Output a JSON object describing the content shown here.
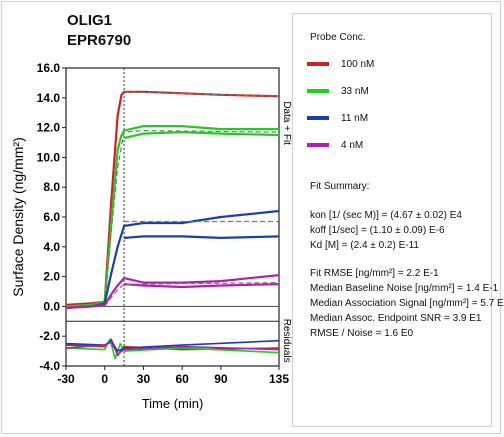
{
  "chart_data": {
    "type": "line",
    "title": "OLIG1",
    "subtitle": "EPR6790",
    "xlabel": "Time (min)",
    "ylabel": "Surface Density (ng/mm²)",
    "right_label_top": "Data + Fit",
    "right_label_bottom": "Residuals",
    "xlim": [
      -30,
      135
    ],
    "ylim": [
      -4.0,
      16.0
    ],
    "xticks": [
      "-30",
      "0",
      "30",
      "60",
      "90",
      "135"
    ],
    "yticks": [
      "-4.0",
      "-2.0",
      "0.0",
      "2.0",
      "4.0",
      "6.0",
      "8.0",
      "10.0",
      "12.0",
      "14.0",
      "16.0"
    ],
    "injection_end_x": 15,
    "residual_divider_y": -1.0,
    "series": [
      {
        "name": "100 nM",
        "color": "#cc2222",
        "data": [
          [
            -30,
            0.1
          ],
          [
            -10,
            0.2
          ],
          [
            0,
            0.3
          ],
          [
            5,
            7.0
          ],
          [
            10,
            12.8
          ],
          [
            13,
            14.2
          ],
          [
            15,
            14.4
          ],
          [
            30,
            14.4
          ],
          [
            60,
            14.3
          ],
          [
            90,
            14.2
          ],
          [
            135,
            14.1
          ]
        ],
        "fit": [
          [
            15,
            14.4
          ],
          [
            135,
            14.1
          ]
        ],
        "residual": [
          [
            -30,
            -2.6
          ],
          [
            0,
            -2.7
          ],
          [
            5,
            -2.2
          ],
          [
            10,
            -3.3
          ],
          [
            15,
            -2.7
          ],
          [
            60,
            -2.9
          ],
          [
            135,
            -2.8
          ]
        ]
      },
      {
        "name": "33 nM",
        "color": "#22cc22",
        "data": [
          [
            -30,
            0.0
          ],
          [
            -10,
            0.1
          ],
          [
            0,
            0.3
          ],
          [
            5,
            5.5
          ],
          [
            10,
            10.5
          ],
          [
            13,
            11.5
          ],
          [
            15,
            11.8
          ],
          [
            30,
            12.1
          ],
          [
            60,
            12.1
          ],
          [
            90,
            11.9
          ],
          [
            135,
            11.9
          ]
        ],
        "data2": [
          [
            15,
            11.3
          ],
          [
            30,
            11.6
          ],
          [
            60,
            11.7
          ],
          [
            90,
            11.6
          ],
          [
            135,
            11.5
          ]
        ],
        "fit": [
          [
            0,
            0.2
          ],
          [
            5,
            5.0
          ],
          [
            10,
            9.3
          ],
          [
            15,
            11.7
          ],
          [
            30,
            11.8
          ],
          [
            135,
            11.7
          ]
        ],
        "residual": [
          [
            -30,
            -2.8
          ],
          [
            0,
            -2.9
          ],
          [
            4,
            -2.2
          ],
          [
            8,
            -3.5
          ],
          [
            12,
            -2.5
          ],
          [
            15,
            -3.0
          ],
          [
            60,
            -2.8
          ],
          [
            135,
            -3.1
          ]
        ]
      },
      {
        "name": "11 nM",
        "color": "#1a3fa6",
        "data": [
          [
            -30,
            -0.1
          ],
          [
            -10,
            0.0
          ],
          [
            0,
            0.2
          ],
          [
            5,
            2.2
          ],
          [
            10,
            4.0
          ],
          [
            15,
            5.4
          ],
          [
            30,
            5.6
          ],
          [
            60,
            5.6
          ],
          [
            90,
            6.0
          ],
          [
            135,
            6.4
          ]
        ],
        "data2": [
          [
            15,
            4.6
          ],
          [
            30,
            4.7
          ],
          [
            60,
            4.7
          ],
          [
            90,
            4.6
          ],
          [
            135,
            4.7
          ]
        ],
        "fit": [
          [
            15,
            5.7
          ],
          [
            135,
            5.7
          ]
        ],
        "residual": [
          [
            -30,
            -2.5
          ],
          [
            0,
            -2.6
          ],
          [
            5,
            -2.3
          ],
          [
            10,
            -3.0
          ],
          [
            15,
            -2.8
          ],
          [
            60,
            -2.6
          ],
          [
            135,
            -2.3
          ]
        ]
      },
      {
        "name": "4 nM",
        "color": "#b020b0",
        "data": [
          [
            -30,
            -0.1
          ],
          [
            -10,
            0.0
          ],
          [
            0,
            0.1
          ],
          [
            5,
            0.8
          ],
          [
            10,
            1.4
          ],
          [
            15,
            1.9
          ],
          [
            30,
            1.6
          ],
          [
            60,
            1.6
          ],
          [
            90,
            1.7
          ],
          [
            135,
            2.1
          ]
        ],
        "data2": [
          [
            15,
            1.5
          ],
          [
            30,
            1.4
          ],
          [
            60,
            1.3
          ],
          [
            90,
            1.4
          ],
          [
            135,
            1.5
          ]
        ],
        "fit": [
          [
            0,
            0.0
          ],
          [
            5,
            0.6
          ],
          [
            10,
            1.1
          ],
          [
            15,
            1.5
          ],
          [
            30,
            1.5
          ],
          [
            135,
            1.6
          ]
        ],
        "residual": [
          [
            -30,
            -2.8
          ],
          [
            0,
            -2.6
          ],
          [
            5,
            -2.4
          ],
          [
            10,
            -3.2
          ],
          [
            15,
            -2.9
          ],
          [
            60,
            -2.7
          ],
          [
            135,
            -2.9
          ]
        ]
      }
    ]
  },
  "panel": {
    "legend_title": "Probe Conc.",
    "legend_items": [
      {
        "label": "100 nM",
        "color": "#cc2222"
      },
      {
        "label": "33 nM",
        "color": "#22cc22"
      },
      {
        "label": "11 nM",
        "color": "#1a3fa6"
      },
      {
        "label": "4 nM",
        "color": "#b020b0"
      }
    ],
    "fit_summary_title": "Fit Summary:",
    "fit_lines": [
      "kon  [1/ (sec M)]  =  (4.67 ± 0.02) E4",
      "koff  [1/sec]  =  (1.10 ± 0.09) E-6",
      "Kd  [M]  =  (2.4 ± 0.2) E-11"
    ],
    "stats_lines": [
      "Fit RMSE [ng/mm²]  =  2.2 E-1",
      "Median Baseline Noise [ng/mm²]  =  1.4 E-1",
      "Median Association Signal [ng/mm²]  =  5.7 E0",
      "Median Assoc. Endpoint SNR  =  3.9 E1",
      "RMSE / Noise  =  1.6 E0"
    ]
  }
}
